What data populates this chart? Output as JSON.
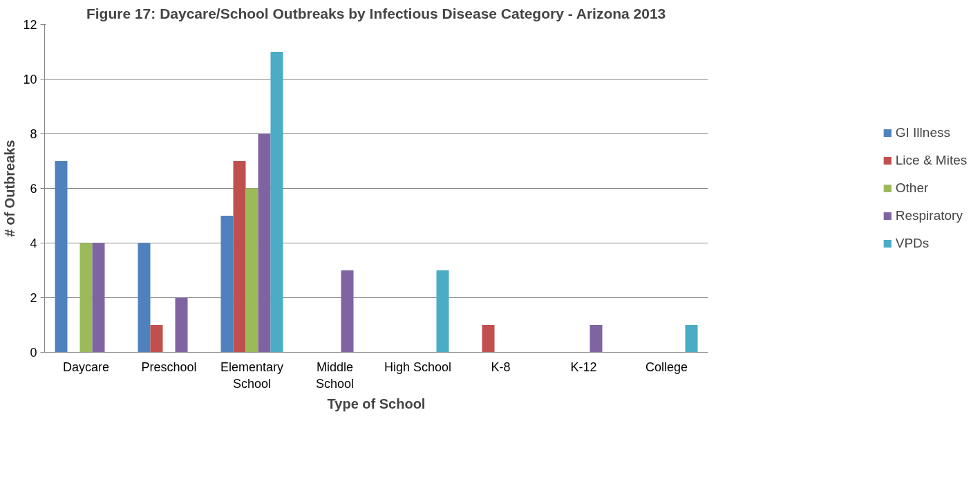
{
  "chart_data": {
    "type": "bar",
    "title": "Figure 17: Daycare/School Outbreaks by Infectious Disease Category - Arizona 2013",
    "xlabel": "Type of School",
    "ylabel": "# of Outbreaks",
    "categories": [
      "Daycare",
      "Preschool",
      "Elementary\nSchool",
      "Middle\nSchool",
      "High School",
      "K-8",
      "K-12",
      "College"
    ],
    "series": [
      {
        "name": "GI Illness",
        "color": "#4f81bd",
        "values": [
          7,
          4,
          5,
          0,
          0,
          0,
          0,
          0
        ]
      },
      {
        "name": "Lice & Mites",
        "color": "#c0504d",
        "values": [
          0,
          1,
          7,
          0,
          0,
          1,
          0,
          0
        ]
      },
      {
        "name": "Other",
        "color": "#9bbb59",
        "values": [
          4,
          0,
          6,
          0,
          0,
          0,
          0,
          0
        ]
      },
      {
        "name": "Respiratory",
        "color": "#8064a2",
        "values": [
          4,
          2,
          8,
          3,
          0,
          0,
          1,
          0
        ]
      },
      {
        "name": "VPDs",
        "color": "#4bacc6",
        "values": [
          0,
          0,
          11,
          0,
          3,
          0,
          0,
          1
        ]
      }
    ],
    "ylim": [
      0,
      12
    ],
    "yticks": [
      0,
      2,
      4,
      6,
      8,
      10,
      12
    ],
    "grid": "y",
    "legend": "right"
  }
}
